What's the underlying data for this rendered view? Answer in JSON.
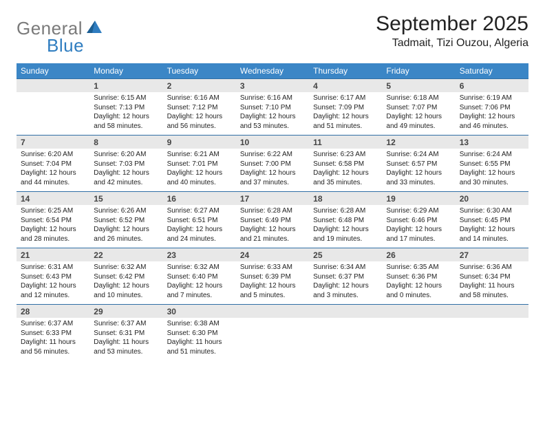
{
  "logo": {
    "text1": "General",
    "text2": "Blue",
    "sail_color": "#2f7dc0",
    "gray": "#7a7a7a"
  },
  "title": "September 2025",
  "location": "Tadmait, Tizi Ouzou, Algeria",
  "colors": {
    "header_bg": "#3b86c6",
    "band_bg": "#e8e8e8",
    "band_border": "#2f6ea5"
  },
  "days_of_week": [
    "Sunday",
    "Monday",
    "Tuesday",
    "Wednesday",
    "Thursday",
    "Friday",
    "Saturday"
  ],
  "weeks": [
    [
      null,
      {
        "n": "1",
        "sr": "6:15 AM",
        "ss": "7:13 PM",
        "dl": "12 hours and 58 minutes."
      },
      {
        "n": "2",
        "sr": "6:16 AM",
        "ss": "7:12 PM",
        "dl": "12 hours and 56 minutes."
      },
      {
        "n": "3",
        "sr": "6:16 AM",
        "ss": "7:10 PM",
        "dl": "12 hours and 53 minutes."
      },
      {
        "n": "4",
        "sr": "6:17 AM",
        "ss": "7:09 PM",
        "dl": "12 hours and 51 minutes."
      },
      {
        "n": "5",
        "sr": "6:18 AM",
        "ss": "7:07 PM",
        "dl": "12 hours and 49 minutes."
      },
      {
        "n": "6",
        "sr": "6:19 AM",
        "ss": "7:06 PM",
        "dl": "12 hours and 46 minutes."
      }
    ],
    [
      {
        "n": "7",
        "sr": "6:20 AM",
        "ss": "7:04 PM",
        "dl": "12 hours and 44 minutes."
      },
      {
        "n": "8",
        "sr": "6:20 AM",
        "ss": "7:03 PM",
        "dl": "12 hours and 42 minutes."
      },
      {
        "n": "9",
        "sr": "6:21 AM",
        "ss": "7:01 PM",
        "dl": "12 hours and 40 minutes."
      },
      {
        "n": "10",
        "sr": "6:22 AM",
        "ss": "7:00 PM",
        "dl": "12 hours and 37 minutes."
      },
      {
        "n": "11",
        "sr": "6:23 AM",
        "ss": "6:58 PM",
        "dl": "12 hours and 35 minutes."
      },
      {
        "n": "12",
        "sr": "6:24 AM",
        "ss": "6:57 PM",
        "dl": "12 hours and 33 minutes."
      },
      {
        "n": "13",
        "sr": "6:24 AM",
        "ss": "6:55 PM",
        "dl": "12 hours and 30 minutes."
      }
    ],
    [
      {
        "n": "14",
        "sr": "6:25 AM",
        "ss": "6:54 PM",
        "dl": "12 hours and 28 minutes."
      },
      {
        "n": "15",
        "sr": "6:26 AM",
        "ss": "6:52 PM",
        "dl": "12 hours and 26 minutes."
      },
      {
        "n": "16",
        "sr": "6:27 AM",
        "ss": "6:51 PM",
        "dl": "12 hours and 24 minutes."
      },
      {
        "n": "17",
        "sr": "6:28 AM",
        "ss": "6:49 PM",
        "dl": "12 hours and 21 minutes."
      },
      {
        "n": "18",
        "sr": "6:28 AM",
        "ss": "6:48 PM",
        "dl": "12 hours and 19 minutes."
      },
      {
        "n": "19",
        "sr": "6:29 AM",
        "ss": "6:46 PM",
        "dl": "12 hours and 17 minutes."
      },
      {
        "n": "20",
        "sr": "6:30 AM",
        "ss": "6:45 PM",
        "dl": "12 hours and 14 minutes."
      }
    ],
    [
      {
        "n": "21",
        "sr": "6:31 AM",
        "ss": "6:43 PM",
        "dl": "12 hours and 12 minutes."
      },
      {
        "n": "22",
        "sr": "6:32 AM",
        "ss": "6:42 PM",
        "dl": "12 hours and 10 minutes."
      },
      {
        "n": "23",
        "sr": "6:32 AM",
        "ss": "6:40 PM",
        "dl": "12 hours and 7 minutes."
      },
      {
        "n": "24",
        "sr": "6:33 AM",
        "ss": "6:39 PM",
        "dl": "12 hours and 5 minutes."
      },
      {
        "n": "25",
        "sr": "6:34 AM",
        "ss": "6:37 PM",
        "dl": "12 hours and 3 minutes."
      },
      {
        "n": "26",
        "sr": "6:35 AM",
        "ss": "6:36 PM",
        "dl": "12 hours and 0 minutes."
      },
      {
        "n": "27",
        "sr": "6:36 AM",
        "ss": "6:34 PM",
        "dl": "11 hours and 58 minutes."
      }
    ],
    [
      {
        "n": "28",
        "sr": "6:37 AM",
        "ss": "6:33 PM",
        "dl": "11 hours and 56 minutes."
      },
      {
        "n": "29",
        "sr": "6:37 AM",
        "ss": "6:31 PM",
        "dl": "11 hours and 53 minutes."
      },
      {
        "n": "30",
        "sr": "6:38 AM",
        "ss": "6:30 PM",
        "dl": "11 hours and 51 minutes."
      },
      null,
      null,
      null,
      null
    ]
  ],
  "labels": {
    "sunrise": "Sunrise:",
    "sunset": "Sunset:",
    "daylight": "Daylight:"
  }
}
